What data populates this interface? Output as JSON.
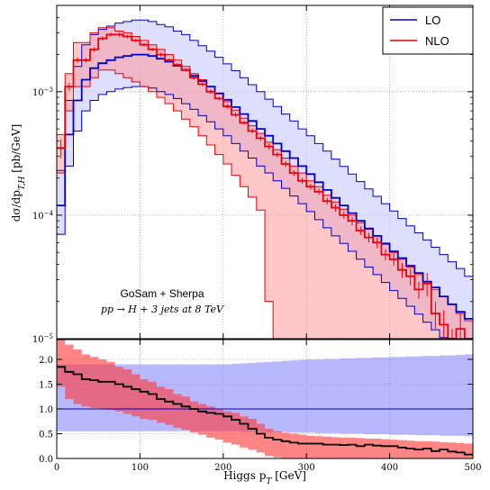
{
  "chart_data": {
    "type": "line",
    "top_panel": {
      "ylabel": "dσ/dp",
      "ylabel_sub": "T,H",
      "ylabel_unit": " [pb/GeV]",
      "yscale": "log",
      "ylim": [
        1e-05,
        0.005
      ],
      "yticks": [
        {
          "value": 0.001,
          "label": "10",
          "exp": "−3"
        },
        {
          "value": 0.0001,
          "label": "10",
          "exp": "−4"
        },
        {
          "value": 1e-05,
          "label": "10",
          "exp": "−5"
        }
      ],
      "legend": {
        "placement": "top-right",
        "entries": [
          {
            "name": "LO",
            "color": "#0000cc"
          },
          {
            "name": "NLO",
            "color": "#e8000b"
          }
        ]
      },
      "annotation_line1": "GoSam + Sherpa",
      "annotation_line2": "pp → H + 3 jets at 8 TeV",
      "x_edges": [
        0,
        10,
        20,
        30,
        40,
        50,
        60,
        70,
        80,
        90,
        100,
        110,
        120,
        130,
        140,
        150,
        160,
        170,
        180,
        190,
        200,
        210,
        220,
        230,
        240,
        250,
        260,
        270,
        280,
        290,
        300,
        310,
        320,
        330,
        340,
        350,
        360,
        370,
        380,
        390,
        400,
        410,
        420,
        430,
        440,
        450,
        460,
        470,
        480,
        490,
        500
      ],
      "lo_central": [
        0.00012,
        0.00045,
        0.00085,
        0.00125,
        0.00155,
        0.0017,
        0.0018,
        0.0019,
        0.00195,
        0.002,
        0.002,
        0.00195,
        0.00185,
        0.00175,
        0.00162,
        0.0015,
        0.00135,
        0.00122,
        0.0011,
        0.00097,
        0.00086,
        0.00075,
        0.00066,
        0.00058,
        0.0005,
        0.00044,
        0.00038,
        0.00033,
        0.00029,
        0.00025,
        0.000215,
        0.000185,
        0.00016,
        0.000138,
        0.00012,
        0.000104,
        9e-05,
        7.8e-05,
        6.8e-05,
        5.9e-05,
        5.1e-05,
        4.5e-05,
        3.9e-05,
        3.4e-05,
        2.9e-05,
        2.6e-05,
        2.2e-05,
        1.9e-05,
        1.65e-05,
        1.45e-05
      ],
      "lo_upper": [
        0.00023,
        0.00085,
        0.0016,
        0.0024,
        0.0029,
        0.0032,
        0.0034,
        0.0036,
        0.0037,
        0.0038,
        0.0038,
        0.0037,
        0.0035,
        0.00335,
        0.0031,
        0.0029,
        0.0026,
        0.00236,
        0.00213,
        0.0019,
        0.00168,
        0.00148,
        0.0013,
        0.00114,
        0.001,
        0.00087,
        0.00076,
        0.00066,
        0.00058,
        0.0005,
        0.00044,
        0.00038,
        0.00033,
        0.000285,
        0.000248,
        0.000215,
        0.000187,
        0.000163,
        0.000142,
        0.000124,
        0.000108,
        9.4e-05,
        8.2e-05,
        7.2e-05,
        6.3e-05,
        5.5e-05,
        4.8e-05,
        4.2e-05,
        3.7e-05,
        3.2e-05
      ],
      "lo_lower": [
        7e-05,
        0.00025,
        0.00048,
        0.0007,
        0.00085,
        0.00095,
        0.001,
        0.00105,
        0.00108,
        0.0011,
        0.0011,
        0.00107,
        0.001,
        0.00095,
        0.00088,
        0.0008,
        0.00072,
        0.00064,
        0.00057,
        0.0005,
        0.00044,
        0.00038,
        0.00033,
        0.00029,
        0.00025,
        0.00022,
        0.00019,
        0.000165,
        0.000143,
        0.000124,
        0.000107,
        9.2e-05,
        7.9e-05,
        6.8e-05,
        5.9e-05,
        5.1e-05,
        4.4e-05,
        3.8e-05,
        3.3e-05,
        2.85e-05,
        2.45e-05,
        2.12e-05,
        1.83e-05,
        1.58e-05,
        1.36e-05,
        1.18e-05,
        1.02e-05,
        8.8e-06,
        7.6e-06,
        6.6e-06
      ],
      "nlo_central": [
        0.00035,
        0.0011,
        0.0018,
        0.0018,
        0.0022,
        0.0027,
        0.0029,
        0.0029,
        0.0028,
        0.0026,
        0.0024,
        0.0022,
        0.002,
        0.0018,
        0.00165,
        0.0015,
        0.0013,
        0.00115,
        0.001,
        0.00088,
        0.00076,
        0.00065,
        0.00056,
        0.00048,
        0.00042,
        0.00036,
        0.00031,
        0.00026,
        0.00022,
        0.00019,
        0.00017,
        0.000155,
        0.00013,
        0.000115,
        0.0001,
        9e-05,
        7.5e-05,
        6.6e-05,
        6e-05,
        4.8e-05,
        4.4e-05,
        3.6e-05,
        3.2e-05,
        2.5e-05,
        2.8e-05,
        1.6e-05,
        1.3e-05,
        9e-06,
        1.2e-05,
        6e-06
      ],
      "nlo_upper": [
        0.00045,
        0.0014,
        0.0025,
        0.0025,
        0.003,
        0.0033,
        0.0033,
        0.0031,
        0.003,
        0.0028,
        0.0026,
        0.0024,
        0.0022,
        0.002,
        0.0018,
        0.0016,
        0.0014,
        0.00125,
        0.0011,
        0.00096,
        0.00083,
        0.00071,
        0.00061,
        0.00053,
        0.00046,
        0.00039,
        0.00034,
        0.00029,
        0.00025,
        0.00022,
        0.00019,
        0.00017,
        0.000145,
        0.000128,
        0.000112,
        0.0001,
        8.7e-05,
        7.7e-05,
        6.8e-05,
        5.8e-05,
        5e-05,
        4.4e-05,
        3.8e-05,
        3.3e-05,
        2.9e-05,
        2.5e-05,
        2.2e-05,
        1.9e-05,
        1.6e-05,
        1.4e-05
      ],
      "nlo_lower": [
        0.00022,
        0.0007,
        0.0011,
        0.0011,
        0.0013,
        0.0015,
        0.0015,
        0.0014,
        0.0013,
        0.0012,
        0.0011,
        0.001,
        0.0009,
        0.0008,
        0.0007,
        0.0006,
        0.00052,
        0.00044,
        0.00037,
        0.00031,
        0.00026,
        0.00021,
        0.00017,
        0.00014,
        0.00011,
        2e-05,
        9e-06,
        9e-06,
        9e-06,
        9e-06,
        9e-06,
        9e-06,
        9e-06,
        9e-06,
        9e-06,
        9e-06,
        9e-06,
        9e-06,
        9e-06,
        9e-06,
        9e-06,
        9e-06,
        9e-06,
        9e-06,
        9e-06,
        9e-06,
        9e-06,
        9e-06,
        9e-06,
        9e-06
      ],
      "nlo_errors": [
        6e-05,
        8e-05,
        0.0001,
        8e-05,
        9e-05,
        0.0001,
        0.0001,
        0.0001,
        9e-05,
        8e-05,
        8e-05,
        7e-05,
        7e-05,
        6e-05,
        6e-05,
        5e-05,
        5e-05,
        4e-05,
        4e-05,
        3e-05,
        3e-05,
        3e-05,
        2e-05,
        2e-05,
        2e-05,
        2e-05,
        1.5e-05,
        1.4e-05,
        1.2e-05,
        1e-05,
        9e-06,
        9e-06,
        8e-06,
        8e-06,
        7e-06,
        7e-06,
        6e-06,
        6e-06,
        6e-06,
        5e-06,
        5e-06,
        5e-06,
        5e-06,
        4e-06,
        6e-06,
        4e-06,
        4e-06,
        3e-06,
        4e-06,
        3e-06
      ]
    },
    "ratio_panel": {
      "xlabel": "Higgs p",
      "xlabel_sub": "T",
      "xlabel_unit": " [GeV]",
      "xlim": [
        0,
        500
      ],
      "ylim": [
        0,
        2.4
      ],
      "xticks": [
        0,
        100,
        200,
        300,
        400,
        500
      ],
      "yticks": [
        "0.0",
        "0.5",
        "1.0",
        "1.5",
        "2.0"
      ],
      "lo_band_upper": [
        1.9,
        1.9,
        1.9,
        1.9,
        1.9,
        1.9,
        1.9,
        1.9,
        1.9,
        1.9,
        1.9,
        1.9,
        1.9,
        1.9,
        1.9,
        1.9,
        1.9,
        1.9,
        1.9,
        1.9,
        1.9,
        1.91,
        1.92,
        1.93,
        1.94,
        1.95,
        1.96,
        1.97,
        1.98,
        1.99,
        2.0,
        2.0,
        2.01,
        2.01,
        2.02,
        2.02,
        2.03,
        2.03,
        2.04,
        2.04,
        2.05,
        2.05,
        2.06,
        2.06,
        2.07,
        2.07,
        2.08,
        2.08,
        2.09,
        2.1
      ],
      "lo_band_lower": [
        0.55,
        0.55,
        0.55,
        0.55,
        0.55,
        0.55,
        0.55,
        0.55,
        0.55,
        0.55,
        0.55,
        0.55,
        0.55,
        0.55,
        0.55,
        0.55,
        0.55,
        0.55,
        0.55,
        0.55,
        0.55,
        0.55,
        0.54,
        0.54,
        0.54,
        0.53,
        0.53,
        0.53,
        0.52,
        0.52,
        0.52,
        0.51,
        0.51,
        0.51,
        0.5,
        0.5,
        0.5,
        0.49,
        0.49,
        0.49,
        0.48,
        0.48,
        0.48,
        0.47,
        0.47,
        0.47,
        0.46,
        0.46,
        0.46,
        0.45
      ],
      "nlo_ratio_central": [
        1.85,
        1.75,
        1.7,
        1.6,
        1.58,
        1.55,
        1.55,
        1.5,
        1.45,
        1.4,
        1.35,
        1.3,
        1.2,
        1.15,
        1.1,
        1.05,
        1.0,
        0.95,
        0.92,
        0.9,
        0.85,
        0.78,
        0.7,
        0.6,
        0.5,
        0.42,
        0.38,
        0.35,
        0.32,
        0.3,
        0.3,
        0.3,
        0.28,
        0.28,
        0.27,
        0.28,
        0.25,
        0.28,
        0.26,
        0.25,
        0.25,
        0.22,
        0.2,
        0.18,
        0.2,
        0.15,
        0.18,
        0.14,
        0.12,
        0.08
      ],
      "nlo_ratio_upper": [
        2.4,
        2.3,
        2.2,
        2.1,
        2.05,
        2.0,
        1.95,
        1.85,
        1.8,
        1.7,
        1.6,
        1.55,
        1.45,
        1.4,
        1.3,
        1.25,
        1.15,
        1.1,
        1.05,
        1.0,
        0.95,
        0.92,
        0.85,
        0.8,
        0.7,
        0.6,
        0.55,
        0.52,
        0.5,
        0.48,
        0.46,
        0.45,
        0.44,
        0.43,
        0.42,
        0.42,
        0.41,
        0.4,
        0.4,
        0.39,
        0.38,
        0.37,
        0.36,
        0.35,
        0.35,
        0.34,
        0.33,
        0.32,
        0.31,
        0.3
      ],
      "nlo_ratio_lower": [
        1.45,
        1.2,
        1.1,
        1.05,
        1.02,
        1.0,
        0.98,
        0.95,
        0.9,
        0.85,
        0.8,
        0.78,
        0.72,
        0.68,
        0.62,
        0.58,
        0.52,
        0.48,
        0.42,
        0.38,
        0.32,
        0.28,
        0.22,
        0.18,
        0.12,
        0.05,
        0.02,
        0.0,
        0.0,
        0.0,
        0.0,
        0.0,
        0.0,
        0.0,
        0.0,
        0.0,
        0.0,
        0.0,
        0.0,
        0.0,
        0.0,
        0.0,
        0.0,
        0.0,
        0.0,
        0.0,
        0.0,
        0.0,
        0.0,
        0.0
      ]
    }
  }
}
